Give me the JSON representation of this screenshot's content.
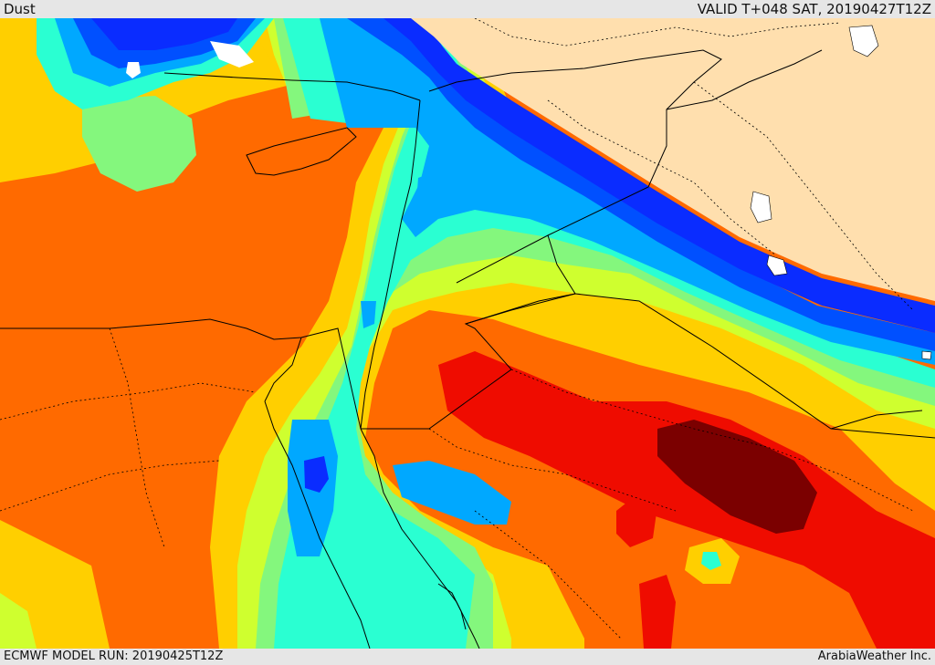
{
  "header": {
    "title": "Dust",
    "valid_time": "VALID T+048 SAT, 20190427T12Z"
  },
  "footer": {
    "model_run": "ECMWF MODEL RUN: 20190425T12Z",
    "credit": "ArabiaWeather Inc."
  },
  "map": {
    "colors": {
      "dark_blue": "#0a2cff",
      "blue": "#0050ff",
      "light_blue": "#00a8ff",
      "aqua": "#2affd2",
      "green": "#84f77d",
      "lime": "#cfff2f",
      "yellow": "#ffcf00",
      "orange": "#ff6a00",
      "red": "#ef0c00",
      "dark_red": "#7b0000",
      "land_no_data": "#ffdfae",
      "water": "#ffffff",
      "border": "#000000"
    }
  }
}
